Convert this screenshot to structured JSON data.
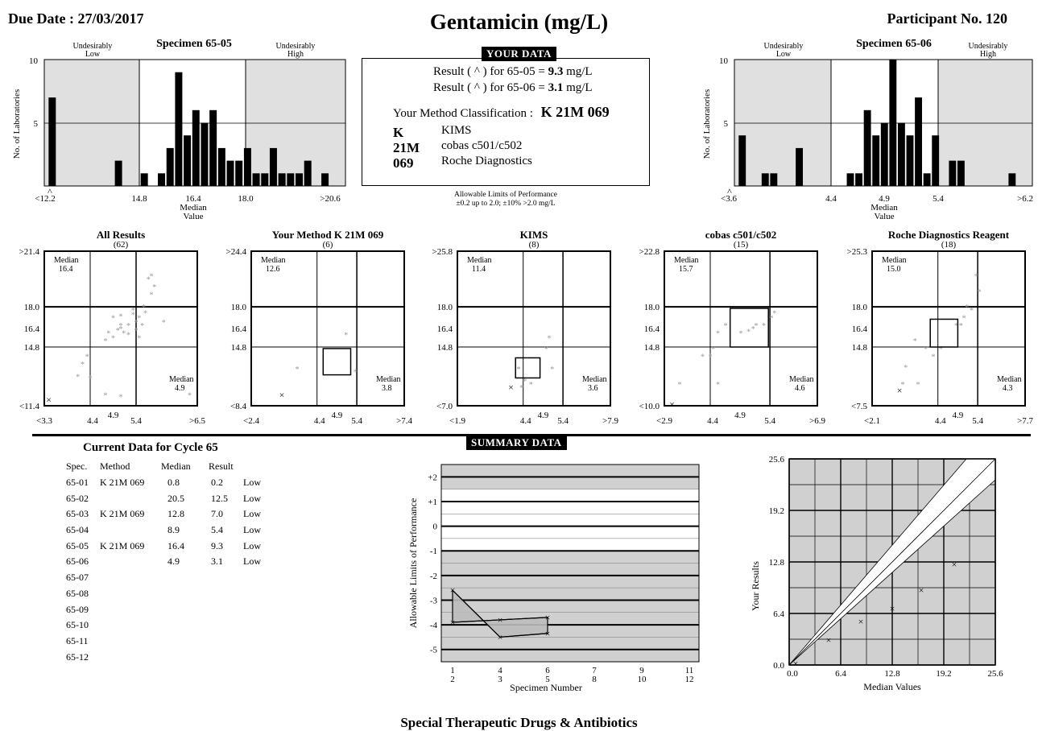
{
  "header": {
    "due_date": "Due Date : 27/03/2017",
    "title": "Gentamicin (mg/L)",
    "participant": "Participant No. 120"
  },
  "your_data": {
    "badge": "YOUR DATA",
    "result1_prefix": "Result ( ^ ) for 65-05  = ",
    "result1_value": "9.3",
    "result1_unit": " mg/L",
    "result2_prefix": "Result ( ^ ) for 65-06  = ",
    "result2_value": "3.1",
    "result2_unit": " mg/L",
    "classification_label": "Your Method Classification :",
    "classification_value": "K 21M 069",
    "codes": [
      {
        "code": "K",
        "desc": "KIMS"
      },
      {
        "code": "21M",
        "desc": "cobas c501/c502"
      },
      {
        "code": "069",
        "desc": "Roche Diagnostics"
      }
    ],
    "limits_line1": "Allowable Limits of Performance",
    "limits_line2": "±0.2 up to 2.0;  ±10% >2.0 mg/L"
  },
  "histograms": [
    {
      "specimen": "Specimen 65-05",
      "low_label": [
        "Undesirably",
        "Low"
      ],
      "high_label": [
        "Undesirably",
        "High"
      ],
      "ylabel": "No. of Laboratories",
      "yticks": [
        "5",
        "10"
      ],
      "ymax": 10,
      "xticks": [
        "<12.2",
        "14.8",
        "16.4",
        "18.0",
        ">20.6"
      ],
      "xtick_pos": [
        0,
        14.8,
        16.4,
        18.0,
        23
      ],
      "x_range": [
        0,
        23
      ],
      "median_label": [
        "Median",
        "Value"
      ],
      "low_limit": 14.8,
      "high_limit": 18.0,
      "median": 16.4,
      "bins": [
        [
          0.25,
          7
        ],
        [
          4.1,
          2
        ],
        [
          5.6,
          1
        ],
        [
          6.6,
          1
        ],
        [
          7.1,
          3
        ],
        [
          7.6,
          9
        ],
        [
          8.1,
          4
        ],
        [
          8.6,
          6
        ],
        [
          9.1,
          5
        ],
        [
          9.6,
          6
        ],
        [
          10.1,
          3
        ],
        [
          10.6,
          2
        ],
        [
          11.1,
          2
        ],
        [
          11.6,
          3
        ],
        [
          12.1,
          1
        ],
        [
          12.6,
          1
        ],
        [
          13.1,
          3
        ],
        [
          13.6,
          1
        ],
        [
          14.1,
          1
        ],
        [
          14.6,
          1
        ],
        [
          15.1,
          2
        ],
        [
          16.1,
          1
        ]
      ],
      "bin_scale": "index",
      "marker": "^"
    },
    {
      "specimen": "Specimen 65-06",
      "low_label": [
        "Undesirably",
        "Low"
      ],
      "high_label": [
        "Undesirably",
        "High"
      ],
      "ylabel": "No. of Laboratories",
      "yticks": [
        "5",
        "10"
      ],
      "ymax": 10,
      "xticks": [
        "<3.6",
        "4.4",
        "4.9",
        "5.4",
        ">6.2"
      ],
      "median_label": [
        "Median",
        "Value"
      ],
      "marker": "^",
      "bins": [
        [
          0.25,
          4
        ],
        [
          1.6,
          1
        ],
        [
          2.1,
          1
        ],
        [
          3.6,
          3
        ],
        [
          6.6,
          1
        ],
        [
          7.1,
          1
        ],
        [
          7.6,
          6
        ],
        [
          8.1,
          4
        ],
        [
          8.6,
          5
        ],
        [
          9.1,
          10
        ],
        [
          9.6,
          5
        ],
        [
          10.1,
          4
        ],
        [
          10.6,
          7
        ],
        [
          11.1,
          1
        ],
        [
          11.6,
          4
        ],
        [
          12.6,
          2
        ],
        [
          13.1,
          2
        ],
        [
          16.1,
          1
        ]
      ]
    }
  ],
  "scatter_panels": [
    {
      "title": "All Results",
      "n": "(62)",
      "median_label": "Median",
      "median_y": "16.4",
      "median_x_label": "Median",
      "median_x": "4.9",
      "yticks": [
        ">21.4",
        "18.0",
        "16.4",
        "14.8",
        "<11.4"
      ],
      "xticks": [
        "<3.3",
        "4.4",
        "4.9",
        "5.4",
        ">6.5"
      ]
    },
    {
      "title": "Your Method K 21M 069",
      "n": "(6)",
      "median_label": "Median",
      "median_y": "12.6",
      "median_x_label": "Median",
      "median_x": "3.8",
      "yticks": [
        ">24.4",
        "18.0",
        "16.4",
        "14.8",
        "<8.4"
      ],
      "xticks": [
        "<2.4",
        "4.4",
        "4.9",
        "5.4",
        ">7.4"
      ]
    },
    {
      "title": "KIMS",
      "n": "(8)",
      "median_label": "Median",
      "median_y": "11.4",
      "median_x_label": "Median",
      "median_x": "3.6",
      "yticks": [
        ">25.8",
        "18.0",
        "16.4",
        "14.8",
        "<7.0"
      ],
      "xticks": [
        "<1.9",
        "4.4",
        "4.9",
        "5.4",
        ">7.9"
      ]
    },
    {
      "title": "cobas c501/c502",
      "n": "(15)",
      "median_label": "Median",
      "median_y": "15.7",
      "median_x_label": "Median",
      "median_x": "4.6",
      "yticks": [
        ">22.8",
        "18.0",
        "16.4",
        "14.8",
        "<10.0"
      ],
      "xticks": [
        "<2.9",
        "4.4",
        "4.9",
        "5.4",
        ">6.9"
      ]
    },
    {
      "title": "Roche Diagnostics Reagent",
      "n": "(18)",
      "median_label": "Median",
      "median_y": "15.0",
      "median_x_label": "Median",
      "median_x": "4.3",
      "yticks": [
        ">25.3",
        "18.0",
        "16.4",
        "14.8",
        "<7.5"
      ],
      "xticks": [
        "<2.1",
        "4.4",
        "4.9",
        "5.4",
        ">7.7"
      ]
    }
  ],
  "summary_badge": "SUMMARY DATA",
  "current_data": {
    "title": "Current Data for Cycle 65",
    "columns": [
      "Spec.",
      "Method",
      "Median",
      "Result"
    ],
    "rows": [
      [
        "65-01",
        "K 21M 069",
        "0.8",
        "0.2",
        "Low"
      ],
      [
        "65-02",
        "",
        "20.5",
        "12.5",
        "Low"
      ],
      [
        "65-03",
        "K 21M 069",
        "12.8",
        "7.0",
        "Low"
      ],
      [
        "65-04",
        "",
        "8.9",
        "5.4",
        "Low"
      ],
      [
        "65-05",
        "K 21M 069",
        "16.4",
        "9.3",
        "Low"
      ],
      [
        "65-06",
        "",
        "4.9",
        "3.1",
        "Low"
      ],
      [
        "65-07",
        "",
        "",
        "",
        ""
      ],
      [
        "65-08",
        "",
        "",
        "",
        ""
      ],
      [
        "65-09",
        "",
        "",
        "",
        ""
      ],
      [
        "65-10",
        "",
        "",
        "",
        ""
      ],
      [
        "65-11",
        "",
        "",
        "",
        ""
      ],
      [
        "65-12",
        "",
        "",
        "",
        ""
      ]
    ]
  },
  "chart_data": [
    {
      "type": "line",
      "ylabel": "Allowable Limits of Performance",
      "xlabel": "Specimen Number",
      "yticks": [
        "+2",
        "+1",
        "0",
        "-1",
        "-2",
        "-3",
        "-4",
        "-5"
      ],
      "ylim": [
        -5,
        2.5
      ],
      "xticks_top": [
        "1",
        "4",
        "6",
        "7",
        "9",
        "11"
      ],
      "xticks_bottom": [
        "2",
        "3",
        "5",
        "8",
        "10",
        "12"
      ],
      "series": [
        {
          "values": [
            [
              1,
              -2.6
            ],
            [
              3,
              -4.5
            ],
            [
              5,
              -4.35
            ]
          ]
        },
        {
          "values": [
            [
              2,
              -3.9
            ],
            [
              4,
              -3.8
            ],
            [
              6,
              -3.7
            ]
          ]
        }
      ]
    },
    {
      "type": "scatter",
      "xlabel": "Median Values",
      "ylabel": "Your Results",
      "xticks": [
        "0.0",
        "6.4",
        "12.8",
        "19.2",
        "25.6"
      ],
      "yticks": [
        "0.0",
        "6.4",
        "12.8",
        "19.2",
        "25.6"
      ],
      "xlim": [
        0,
        25.6
      ],
      "ylim": [
        0,
        25.6
      ],
      "points": [
        [
          0.8,
          0.2
        ],
        [
          4.9,
          3.1
        ],
        [
          8.9,
          5.4
        ],
        [
          12.8,
          7.0
        ],
        [
          16.4,
          9.3
        ],
        [
          20.5,
          12.5
        ]
      ]
    }
  ],
  "footer": "Special Therapeutic Drugs & Antibiotics"
}
